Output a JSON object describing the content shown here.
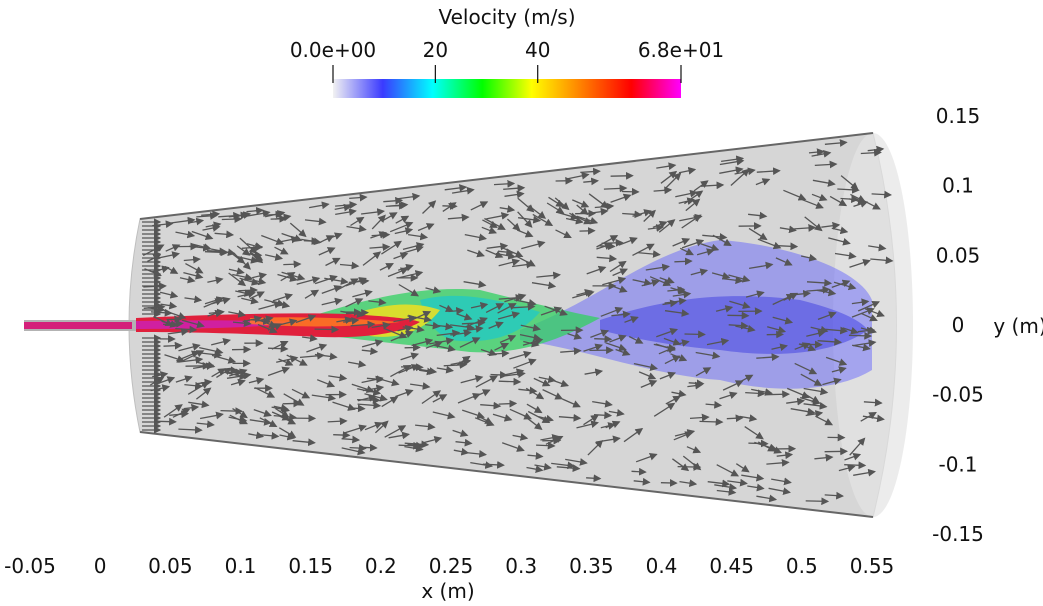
{
  "colorbar": {
    "title": "Velocity (m/s)",
    "ticks": [
      "0.0e+00",
      "20",
      "40",
      "6.8e+01"
    ],
    "tick_values": [
      0,
      20,
      40,
      68
    ],
    "range": [
      0,
      68
    ],
    "colors": [
      "#f2f2f2",
      "#3a3aff",
      "#00ffff",
      "#00ff00",
      "#ffff00",
      "#ff7f00",
      "#ff0000",
      "#ff00ff"
    ]
  },
  "axes": {
    "xlabel": "x (m)",
    "ylabel": "y (m)",
    "xticks": [
      "-0.05",
      "0",
      "0.05",
      "0.1",
      "0.15",
      "0.2",
      "0.25",
      "0.3",
      "0.35",
      "0.4",
      "0.45",
      "0.5",
      "0.55"
    ],
    "xtick_values": [
      -0.05,
      0,
      0.05,
      0.1,
      0.15,
      0.2,
      0.25,
      0.3,
      0.35,
      0.4,
      0.45,
      0.5,
      0.55
    ],
    "yticks": [
      "0.15",
      "0.1",
      "0.05",
      "0",
      "-0.05",
      "-0.1",
      "-0.15"
    ],
    "ytick_values": [
      0.15,
      0.1,
      0.05,
      0,
      -0.05,
      -0.1,
      -0.15
    ],
    "xlim": [
      -0.05,
      0.55
    ],
    "ylim": [
      -0.15,
      0.15
    ]
  },
  "colors": {
    "domain_fill": "#d9d9d9",
    "arrow": "#555555",
    "jet_core": "#e02040"
  }
}
